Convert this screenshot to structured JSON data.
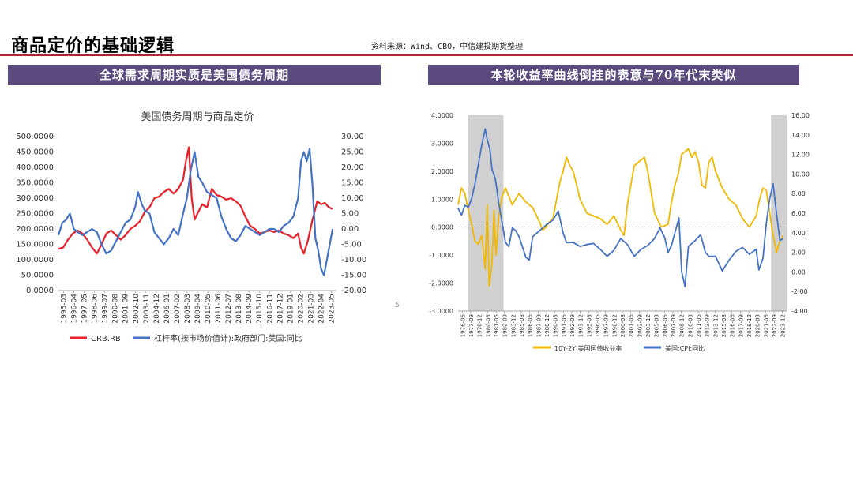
{
  "header": {
    "title": "商品定价的基础逻辑",
    "source": "资料来源：Wind、CBO，中信建投期货整理",
    "page_number": "5"
  },
  "banners": {
    "left": "全球需求周期实质是美国债务周期",
    "right": "本轮收益率曲线倒挂的表意与70年代末类似"
  },
  "colors": {
    "accent_rule": "#b4242c",
    "banner_bg": "#5b4a7e",
    "red_series": "#e8202a",
    "blue_series": "#4472c4",
    "gold_series": "#f2b800",
    "shade": "#c8c8c8"
  },
  "chart_data": [
    {
      "type": "line",
      "title": "美国债务周期与商品定价",
      "x_ticks": [
        "1995-03",
        "1996-04",
        "1997-05",
        "1998-06",
        "1999-07",
        "2000-08",
        "2001-09",
        "2002-10",
        "2003-11",
        "2004-12",
        "2006-01",
        "2007-02",
        "2008-03",
        "2009-04",
        "2010-05",
        "2011-06",
        "2012-07",
        "2013-08",
        "2014-09",
        "2015-10",
        "2016-11",
        "2017-12",
        "2019-01",
        "2020-02",
        "2021-03",
        "2022-04",
        "2023-05"
      ],
      "x_range": [
        1995.0,
        2024.0
      ],
      "y_left": {
        "ticks": [
          "0.0000",
          "50.0000",
          "100.0000",
          "150.0000",
          "200.0000",
          "250.0000",
          "300.0000",
          "350.0000",
          "400.0000",
          "450.0000",
          "500.0000"
        ],
        "range": [
          0,
          500
        ]
      },
      "y_right": {
        "ticks": [
          "-20.00",
          "-15.00",
          "-10.00",
          "-5.00",
          "0.00",
          "5.00",
          "10.00",
          "15.00",
          "20.00",
          "25.00",
          "30.00"
        ],
        "range": [
          -20,
          30
        ]
      },
      "series": [
        {
          "name": "CRB.RB",
          "axis": "left",
          "color": "#e8202a",
          "x": [
            1995.0,
            1995.5,
            1996.0,
            1996.5,
            1997.0,
            1997.5,
            1998.0,
            1998.5,
            1999.0,
            1999.5,
            2000.0,
            2000.5,
            2001.0,
            2001.5,
            2002.0,
            2002.5,
            2003.0,
            2003.5,
            2004.0,
            2004.5,
            2005.0,
            2005.5,
            2006.0,
            2006.5,
            2007.0,
            2007.5,
            2008.0,
            2008.3,
            2008.6,
            2008.9,
            2009.2,
            2009.5,
            2010.0,
            2010.5,
            2011.0,
            2011.5,
            2012.0,
            2012.5,
            2013.0,
            2013.5,
            2014.0,
            2014.5,
            2015.0,
            2015.5,
            2016.0,
            2016.5,
            2017.0,
            2017.5,
            2018.0,
            2018.5,
            2019.0,
            2019.5,
            2020.0,
            2020.3,
            2020.6,
            2021.0,
            2021.5,
            2022.0,
            2022.4,
            2022.8,
            2023.2,
            2023.6
          ],
          "y": [
            135,
            140,
            165,
            185,
            195,
            185,
            165,
            140,
            120,
            150,
            185,
            195,
            180,
            165,
            180,
            200,
            210,
            225,
            255,
            270,
            300,
            305,
            320,
            330,
            315,
            330,
            360,
            420,
            465,
            300,
            230,
            250,
            280,
            270,
            330,
            310,
            305,
            295,
            300,
            290,
            275,
            240,
            210,
            200,
            185,
            190,
            195,
            190,
            195,
            185,
            180,
            170,
            185,
            140,
            120,
            160,
            230,
            290,
            280,
            285,
            270,
            265
          ]
        },
        {
          "name": "杠杆率(按市场价值计):政府部门:美国:同比",
          "axis": "right",
          "color": "#4472c4",
          "x": [
            1995.0,
            1995.4,
            1995.8,
            1996.2,
            1996.6,
            1997.0,
            1997.5,
            1998.0,
            1998.5,
            1999.0,
            1999.5,
            2000.0,
            2000.5,
            2001.0,
            2001.5,
            2002.0,
            2002.5,
            2003.0,
            2003.3,
            2003.7,
            2004.0,
            2004.5,
            2005.0,
            2005.5,
            2006.0,
            2006.5,
            2007.0,
            2007.5,
            2008.0,
            2008.4,
            2008.8,
            2009.2,
            2009.6,
            2010.0,
            2010.5,
            2011.0,
            2011.5,
            2012.0,
            2012.5,
            2013.0,
            2013.5,
            2014.0,
            2014.5,
            2015.0,
            2015.5,
            2016.0,
            2016.5,
            2017.0,
            2017.5,
            2018.0,
            2018.5,
            2019.0,
            2019.5,
            2020.0,
            2020.3,
            2020.6,
            2020.9,
            2021.2,
            2021.5,
            2021.8,
            2022.1,
            2022.4,
            2022.7,
            2023.0,
            2023.3,
            2023.6
          ],
          "y": [
            -2,
            2,
            3,
            5,
            0,
            -1,
            -2,
            -1,
            0,
            -1,
            -5,
            -8,
            -7,
            -4,
            -1,
            2,
            3,
            7,
            12,
            8,
            6,
            5,
            -1,
            -3,
            -5,
            -3,
            0,
            -2,
            5,
            10,
            19,
            25,
            17,
            15,
            12,
            11,
            10,
            4,
            0,
            -3,
            -4,
            -2,
            1,
            0,
            -1,
            -2,
            -1,
            0,
            0,
            -1,
            1,
            2,
            4,
            10,
            22,
            25,
            22,
            26,
            14,
            -3,
            -7,
            -13,
            -15,
            -10,
            -5,
            0
          ]
        }
      ]
    },
    {
      "type": "line",
      "x_ticks": [
        "1976-06",
        "1977-09",
        "1978-12",
        "1980-03",
        "1981-06",
        "1982-09",
        "1983-12",
        "1985-03",
        "1986-06",
        "1987-09",
        "1988-12",
        "1990-03",
        "1991-06",
        "1992-09",
        "1993-12",
        "1995-03",
        "1996-06",
        "1997-09",
        "1998-12",
        "2000-03",
        "2001-06",
        "2002-09",
        "2003-12",
        "2005-03",
        "2006-06",
        "2007-09",
        "2008-12",
        "2010-03",
        "2011-06",
        "2012-09",
        "2013-12",
        "2015-03",
        "2016-06",
        "2017-09",
        "2018-12",
        "2020-03",
        "2021-06",
        "2022-09",
        "2023-12"
      ],
      "x_range": [
        1976.0,
        2024.5
      ],
      "y_left": {
        "ticks": [
          "-3.0000",
          "-2.0000",
          "-1.0000",
          "0.0000",
          "1.0000",
          "2.0000",
          "3.0000",
          "4.0000"
        ],
        "range": [
          -3,
          4
        ]
      },
      "y_right": {
        "ticks": [
          "-4.00",
          "-2.00",
          "0.00",
          "2.00",
          "4.00",
          "6.00",
          "8.00",
          "10.00",
          "12.00",
          "14.00",
          "16.00"
        ],
        "range": [
          -4,
          16
        ]
      },
      "shaded_periods": [
        [
          1977.5,
          1982.7
        ],
        [
          2022.2,
          2024.5
        ]
      ],
      "series": [
        {
          "name": "10Y-2Y 美国国债收益率",
          "axis": "left",
          "color": "#f2b800",
          "x": [
            1976.0,
            1976.5,
            1977.0,
            1977.5,
            1978.0,
            1978.5,
            1979.0,
            1979.5,
            1980.0,
            1980.3,
            1980.6,
            1981.0,
            1981.3,
            1981.6,
            1982.0,
            1982.5,
            1983.0,
            1983.5,
            1984.0,
            1985.0,
            1986.0,
            1987.0,
            1988.0,
            1988.5,
            1989.0,
            1989.5,
            1990.0,
            1991.0,
            1991.5,
            1992.0,
            1992.5,
            1993.0,
            1994.0,
            1995.0,
            1996.0,
            1997.0,
            1998.0,
            1999.0,
            2000.0,
            2000.5,
            2001.0,
            2002.0,
            2003.0,
            2003.5,
            2004.0,
            2005.0,
            2006.0,
            2007.0,
            2007.5,
            2008.0,
            2008.5,
            2009.0,
            2009.5,
            2010.0,
            2010.5,
            2011.0,
            2011.5,
            2012.0,
            2012.5,
            2013.0,
            2013.5,
            2014.0,
            2015.0,
            2016.0,
            2017.0,
            2018.0,
            2019.0,
            2019.5,
            2020.0,
            2020.5,
            2021.0,
            2021.5,
            2022.0,
            2022.3,
            2022.6,
            2023.0,
            2023.5,
            2024.0
          ],
          "y": [
            0.8,
            1.4,
            1.2,
            0.6,
            0.1,
            -0.5,
            -0.6,
            -0.3,
            -1.5,
            0.8,
            -2.1,
            -1.3,
            0.6,
            -1.0,
            0.4,
            1.1,
            1.4,
            1.1,
            0.8,
            1.2,
            0.9,
            0.7,
            0.2,
            -0.1,
            0.0,
            0.2,
            0.3,
            1.6,
            2.0,
            2.5,
            2.2,
            2.0,
            1.0,
            0.5,
            0.4,
            0.3,
            0.1,
            0.4,
            -0.1,
            -0.3,
            0.8,
            2.2,
            2.4,
            2.5,
            2.0,
            0.5,
            0.0,
            0.1,
            0.9,
            1.5,
            1.9,
            2.6,
            2.7,
            2.8,
            2.5,
            2.7,
            2.3,
            1.5,
            1.4,
            2.3,
            2.5,
            2.0,
            1.4,
            1.0,
            0.8,
            0.3,
            0.0,
            0.2,
            0.4,
            1.0,
            1.4,
            1.3,
            0.5,
            0.0,
            -0.4,
            -0.9,
            -0.5,
            -0.3
          ]
        },
        {
          "name": "美国:CPI:同比",
          "axis": "right",
          "color": "#4472c4",
          "x": [
            1976.0,
            1976.5,
            1977.0,
            1977.5,
            1978.0,
            1978.5,
            1979.0,
            1979.5,
            1980.0,
            1980.3,
            1980.7,
            1981.0,
            1981.5,
            1982.0,
            1982.5,
            1983.0,
            1983.5,
            1984.0,
            1984.5,
            1985.0,
            1986.0,
            1986.5,
            1987.0,
            1988.0,
            1989.0,
            1990.0,
            1990.8,
            1991.5,
            1992.0,
            1993.0,
            1994.0,
            1995.0,
            1996.0,
            1997.0,
            1998.0,
            1999.0,
            2000.0,
            2001.0,
            2002.0,
            2003.0,
            2004.0,
            2005.0,
            2005.8,
            2006.5,
            2007.0,
            2007.5,
            2008.0,
            2008.6,
            2009.0,
            2009.5,
            2010.0,
            2011.0,
            2011.8,
            2012.5,
            2013.0,
            2014.0,
            2015.0,
            2016.0,
            2017.0,
            2018.0,
            2019.0,
            2020.0,
            2020.4,
            2021.0,
            2021.5,
            2022.0,
            2022.5,
            2023.0,
            2023.5,
            2024.0
          ],
          "y": [
            6.5,
            5.8,
            6.8,
            6.6,
            7.5,
            9.0,
            11.0,
            13.0,
            14.6,
            13.5,
            12.5,
            10.5,
            9.5,
            7.0,
            5.0,
            3.0,
            2.6,
            4.5,
            4.2,
            3.6,
            1.5,
            1.2,
            3.6,
            4.2,
            4.8,
            5.3,
            6.2,
            4.0,
            3.0,
            3.0,
            2.6,
            2.8,
            2.9,
            2.3,
            1.6,
            2.2,
            3.4,
            2.8,
            1.6,
            2.3,
            2.7,
            3.4,
            4.5,
            3.5,
            2.0,
            2.7,
            4.0,
            5.5,
            0.0,
            -1.5,
            2.6,
            3.2,
            3.8,
            2.0,
            1.6,
            1.6,
            0.1,
            1.2,
            2.1,
            2.5,
            1.8,
            2.3,
            0.2,
            1.4,
            5.0,
            7.5,
            9.0,
            6.0,
            3.2,
            3.4
          ]
        }
      ]
    }
  ]
}
